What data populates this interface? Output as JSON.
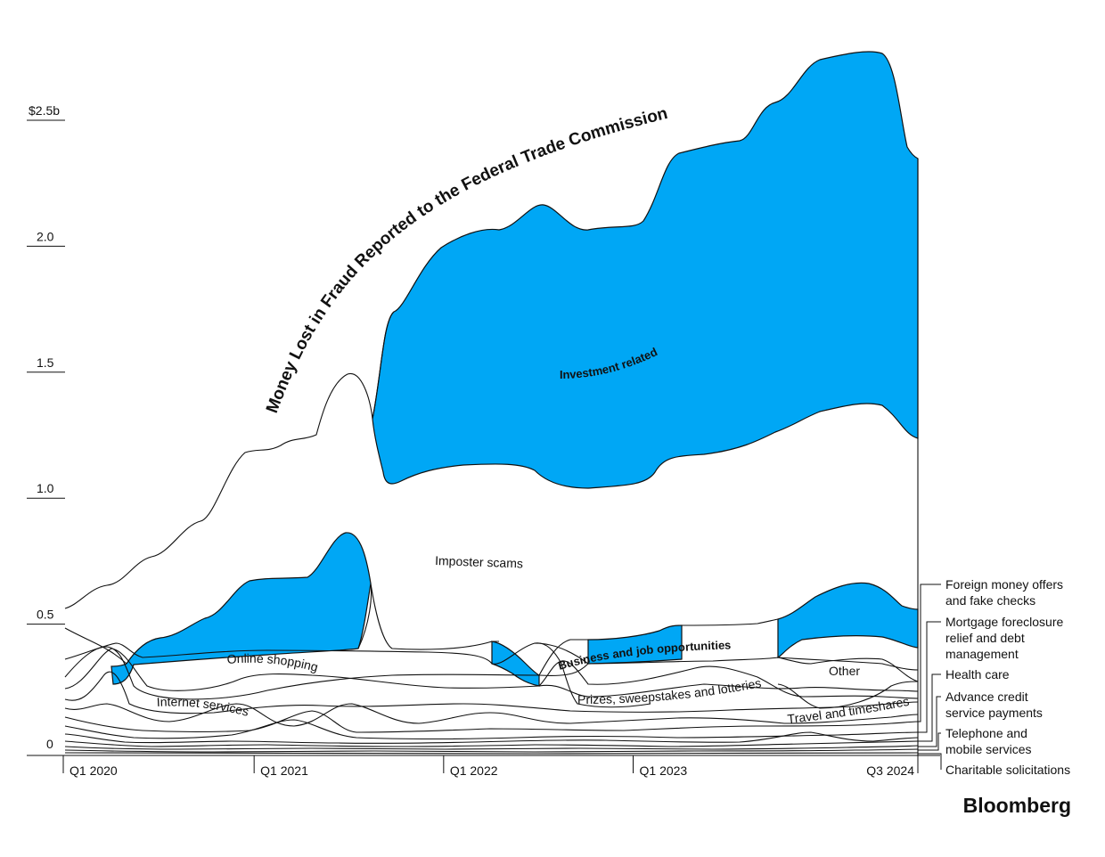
{
  "chart_data": {
    "type": "area",
    "title": "Money Lost in Fraud Reported to the Federal Trade Commission",
    "unit_prefix": "$",
    "ylim": [
      0,
      2.85
    ],
    "yticks": [
      {
        "value": 0,
        "label": "0"
      },
      {
        "value": 0.5,
        "label": "0.5"
      },
      {
        "value": 1.0,
        "label": "1.0"
      },
      {
        "value": 1.5,
        "label": "1.5"
      },
      {
        "value": 2.0,
        "label": "2.0"
      },
      {
        "value": 2.5,
        "label": "$2.5b"
      }
    ],
    "x_tick_labels": [
      {
        "label": "Q1 2020",
        "index": 0
      },
      {
        "label": "Q1 2021",
        "index": 4
      },
      {
        "label": "Q1 2022",
        "index": 8
      },
      {
        "label": "Q1 2023",
        "index": 12
      },
      {
        "label": "Q3 2024",
        "index": 18
      }
    ],
    "x": [
      "Q1 2020",
      "Q2 2020",
      "Q3 2020",
      "Q4 2020",
      "Q1 2021",
      "Q2 2021",
      "Q3 2021",
      "Q4 2021",
      "Q1 2022",
      "Q2 2022",
      "Q3 2022",
      "Q4 2022",
      "Q1 2023",
      "Q2 2023",
      "Q3 2023",
      "Q4 2023",
      "Q1 2024",
      "Q2 2024",
      "Q3 2024"
    ],
    "totals": [
      0.58,
      0.67,
      0.78,
      0.92,
      1.2,
      1.25,
      1.51,
      1.75,
      2.0,
      2.07,
      2.18,
      2.08,
      2.12,
      2.4,
      2.44,
      2.58,
      2.78,
      2.8,
      2.37
    ],
    "series": [
      {
        "name": "Imposter scams",
        "values": [
          0.28,
          0.32,
          0.34,
          0.38,
          0.42,
          0.44,
          0.4,
          0.34,
          0.36,
          0.38,
          0.34,
          0.34,
          0.3,
          0.36,
          0.4,
          0.34,
          0.32,
          0.34,
          0.48
        ]
      },
      {
        "name": "Investment related",
        "values": [
          0.0,
          0.0,
          0.0,
          0.0,
          0.0,
          0.0,
          0.0,
          0.68,
          0.86,
          0.92,
          1.05,
          0.98,
          1.05,
          1.12,
          1.2,
          1.26,
          1.42,
          1.38,
          1.13
        ]
      },
      {
        "name": "Online shopping",
        "values": [
          0.03,
          0.03,
          0.03,
          0.03,
          0.03,
          0.03,
          0.03,
          0.03,
          0.03,
          0.03,
          0.03,
          0.03,
          0.03,
          0.03,
          0.03,
          0.03,
          0.03,
          0.03,
          0.03
        ]
      },
      {
        "name": "Internet services",
        "values": [
          0.02,
          0.02,
          0.02,
          0.02,
          0.02,
          0.02,
          0.02,
          0.02,
          0.02,
          0.02,
          0.02,
          0.02,
          0.02,
          0.02,
          0.02,
          0.02,
          0.02,
          0.02,
          0.02
        ]
      },
      {
        "name": "Business and job opportunities",
        "values": [
          0.05,
          0.08,
          0.18,
          0.25,
          0.3,
          0.36,
          0.5,
          0.02,
          0.06,
          0.05,
          0.05,
          0.12,
          0.12,
          0.08,
          0.08,
          0.06,
          0.2,
          0.2,
          0.15
        ]
      },
      {
        "name": "Prizes, sweepstakes and lotteries",
        "values": [
          0.03,
          0.03,
          0.03,
          0.03,
          0.03,
          0.03,
          0.03,
          0.03,
          0.03,
          0.03,
          0.03,
          0.03,
          0.03,
          0.03,
          0.03,
          0.03,
          0.03,
          0.03,
          0.03
        ]
      },
      {
        "name": "Other",
        "values": [
          0.02,
          0.02,
          0.02,
          0.02,
          0.02,
          0.02,
          0.02,
          0.02,
          0.02,
          0.02,
          0.02,
          0.02,
          0.02,
          0.02,
          0.02,
          0.02,
          0.02,
          0.02,
          0.02
        ]
      },
      {
        "name": "Travel and timeshares",
        "values": [
          0.01,
          0.01,
          0.01,
          0.01,
          0.01,
          0.01,
          0.01,
          0.01,
          0.01,
          0.01,
          0.01,
          0.01,
          0.01,
          0.01,
          0.01,
          0.01,
          0.01,
          0.01,
          0.01
        ]
      },
      {
        "name": "Foreign money offers and fake checks",
        "values": [
          0.01,
          0.01,
          0.01,
          0.01,
          0.01,
          0.01,
          0.01,
          0.01,
          0.01,
          0.01,
          0.01,
          0.01,
          0.01,
          0.01,
          0.01,
          0.01,
          0.01,
          0.01,
          0.01
        ]
      },
      {
        "name": "Mortgage foreclosure relief and debt management",
        "values": [
          0.005,
          0.005,
          0.005,
          0.005,
          0.005,
          0.005,
          0.005,
          0.005,
          0.005,
          0.005,
          0.005,
          0.005,
          0.005,
          0.005,
          0.005,
          0.005,
          0.005,
          0.005,
          0.005
        ]
      },
      {
        "name": "Health care",
        "values": [
          0.005,
          0.005,
          0.005,
          0.005,
          0.005,
          0.005,
          0.005,
          0.005,
          0.005,
          0.005,
          0.005,
          0.005,
          0.005,
          0.005,
          0.005,
          0.005,
          0.005,
          0.005,
          0.005
        ]
      },
      {
        "name": "Advance credit service payments",
        "values": [
          0.004,
          0.004,
          0.004,
          0.004,
          0.004,
          0.004,
          0.004,
          0.004,
          0.004,
          0.004,
          0.004,
          0.004,
          0.004,
          0.004,
          0.004,
          0.004,
          0.004,
          0.004,
          0.004
        ]
      },
      {
        "name": "Telephone and mobile services",
        "values": [
          0.004,
          0.004,
          0.004,
          0.004,
          0.004,
          0.004,
          0.004,
          0.004,
          0.004,
          0.004,
          0.004,
          0.004,
          0.004,
          0.004,
          0.004,
          0.004,
          0.004,
          0.004,
          0.004
        ]
      },
      {
        "name": "Charitable solicitations",
        "values": [
          0.002,
          0.002,
          0.002,
          0.002,
          0.002,
          0.002,
          0.002,
          0.002,
          0.002,
          0.002,
          0.002,
          0.002,
          0.002,
          0.002,
          0.002,
          0.002,
          0.002,
          0.002,
          0.002
        ]
      }
    ],
    "highlight_color": "#00a7f5",
    "line_color": "#111111",
    "side_labels": [
      {
        "lines": [
          "Foreign money offers",
          "and fake checks"
        ]
      },
      {
        "lines": [
          "Mortgage foreclosure",
          "relief and debt",
          "management"
        ]
      },
      {
        "lines": [
          "Health care"
        ]
      },
      {
        "lines": [
          "Advance credit",
          "service payments"
        ]
      },
      {
        "lines": [
          "Telephone and",
          "mobile services"
        ]
      },
      {
        "lines": [
          "Charitable solicitations"
        ]
      }
    ]
  },
  "brand": "Bloomberg"
}
